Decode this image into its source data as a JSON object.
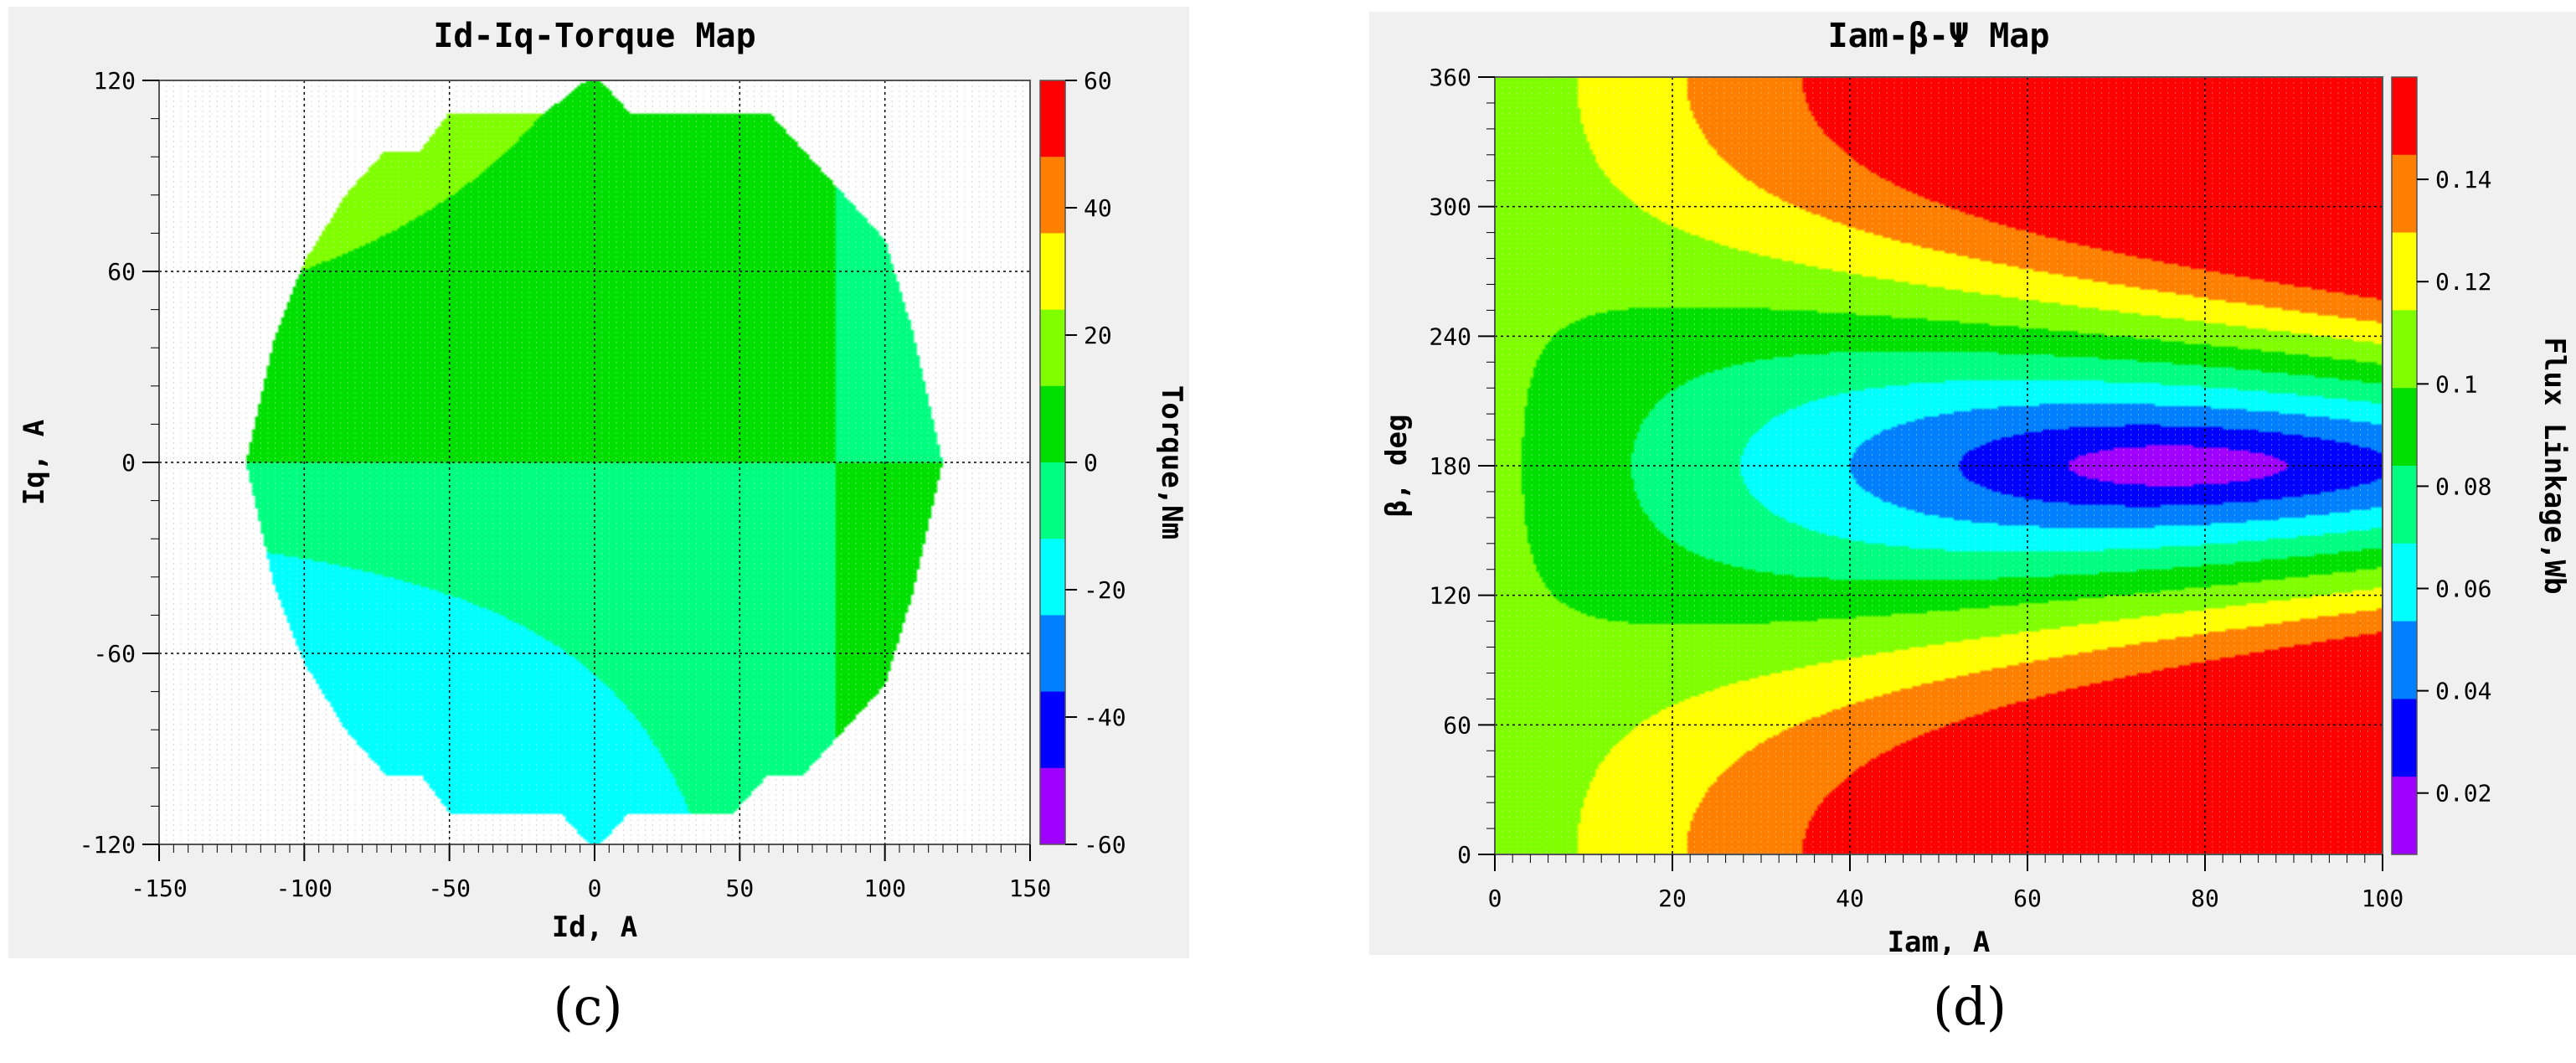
{
  "chart_data": [
    {
      "id": "c",
      "type": "heatmap",
      "title": "Id-Iq-Torque Map",
      "xlabel": "Id, A",
      "ylabel": "Iq, A",
      "xlim": [
        -150,
        150
      ],
      "ylim": [
        -120,
        120
      ],
      "x_ticks": [
        "-150",
        "-100",
        "-50",
        "0",
        "50",
        "100",
        "150"
      ],
      "y_ticks": [
        "120",
        "60",
        "0",
        "-60",
        "-120"
      ],
      "colorbar_label": "Torque,Nm",
      "colorbar_range": [
        -60,
        60
      ],
      "colorbar_ticks": [
        "60",
        "40",
        "20",
        "0",
        "-20",
        "-40",
        "-60"
      ],
      "colorbar_colors": [
        "#ff0000",
        "#ff8000",
        "#ffff00",
        "#80ff00",
        "#00e000",
        "#00ff80",
        "#00ffff",
        "#0080ff",
        "#0000ff",
        "#a000ff"
      ],
      "grid": true,
      "region_polygon": [
        [
          -120,
          0
        ],
        [
          -110,
          40
        ],
        [
          -100,
          63
        ],
        [
          -85,
          85
        ],
        [
          -72,
          98
        ],
        [
          -60,
          98
        ],
        [
          -50,
          110
        ],
        [
          -17,
          110
        ],
        [
          0,
          122
        ],
        [
          12,
          110
        ],
        [
          60,
          110
        ],
        [
          72,
          98
        ],
        [
          100,
          70
        ],
        [
          110,
          40
        ],
        [
          120,
          0
        ],
        [
          110,
          -40
        ],
        [
          100,
          -70
        ],
        [
          72,
          -98
        ],
        [
          60,
          -98
        ],
        [
          48,
          -110
        ],
        [
          12,
          -110
        ],
        [
          0,
          -122
        ],
        [
          -12,
          -110
        ],
        [
          -50,
          -110
        ],
        [
          -60,
          -98
        ],
        [
          -72,
          -98
        ],
        [
          -85,
          -85
        ],
        [
          -100,
          -63
        ],
        [
          -110,
          -40
        ]
      ],
      "model": "torque = 1.5 * iq * (0.1 - 0.0012 * id)",
      "bands": [
        {
          "min": 50,
          "max": 70,
          "color": "#ff0000"
        },
        {
          "min": 40,
          "max": 50,
          "color": "#ff8000"
        },
        {
          "min": 30,
          "max": 40,
          "color": "#ffff00"
        },
        {
          "min": 20,
          "max": 30,
          "color": "#80ff00"
        },
        {
          "min": 0,
          "max": 20,
          "color": "#00e000"
        },
        {
          "min": -10,
          "max": 0,
          "color": "#00ff80"
        },
        {
          "min": -30,
          "max": -10,
          "color": "#00ffff"
        },
        {
          "min": -40,
          "max": -30,
          "color": "#0080ff"
        },
        {
          "min": -50,
          "max": -40,
          "color": "#0000ff"
        },
        {
          "min": -70,
          "max": -50,
          "color": "#a000ff"
        }
      ]
    },
    {
      "id": "d",
      "type": "heatmap",
      "title": "Iam-β-Ψ Map",
      "xlabel": "Iam, A",
      "ylabel": "β, deg",
      "xlim": [
        0,
        100
      ],
      "ylim": [
        0,
        360
      ],
      "x_ticks": [
        "0",
        "20",
        "40",
        "60",
        "80",
        "100"
      ],
      "y_ticks": [
        "360",
        "300",
        "240",
        "180",
        "120",
        "60",
        "0"
      ],
      "colorbar_label": "Flux Linkage,Wb",
      "colorbar_range": [
        0.008,
        0.16
      ],
      "colorbar_ticks": [
        "0.14",
        "0.12",
        "0.1",
        "0.08",
        "0.06",
        "0.04",
        "0.02"
      ],
      "colorbar_colors": [
        "#ff0000",
        "#ff8000",
        "#ffff00",
        "#80ff00",
        "#00e000",
        "#00ff80",
        "#00ffff",
        "#0080ff",
        "#0000ff",
        "#a000ff"
      ],
      "grid": true,
      "model": "flux = sqrt((0.1 + 0.0013*Iam*cos(beta))^2 + (0.0013*Iam*sin(beta))^2)",
      "bands": [
        {
          "min": 0.145,
          "max": 1,
          "color": "#ff0000"
        },
        {
          "min": 0.128,
          "max": 0.145,
          "color": "#ff8000"
        },
        {
          "min": 0.112,
          "max": 0.128,
          "color": "#ffff00"
        },
        {
          "min": 0.096,
          "max": 0.112,
          "color": "#80ff00"
        },
        {
          "min": 0.08,
          "max": 0.096,
          "color": "#00e000"
        },
        {
          "min": 0.064,
          "max": 0.08,
          "color": "#00ff80"
        },
        {
          "min": 0.048,
          "max": 0.064,
          "color": "#00ffff"
        },
        {
          "min": 0.032,
          "max": 0.048,
          "color": "#0080ff"
        },
        {
          "min": 0.016,
          "max": 0.032,
          "color": "#0000ff"
        },
        {
          "min": -1,
          "max": 0.016,
          "color": "#a000ff"
        }
      ]
    }
  ],
  "panel_labels": {
    "c": "(c)",
    "d": "(d)"
  }
}
